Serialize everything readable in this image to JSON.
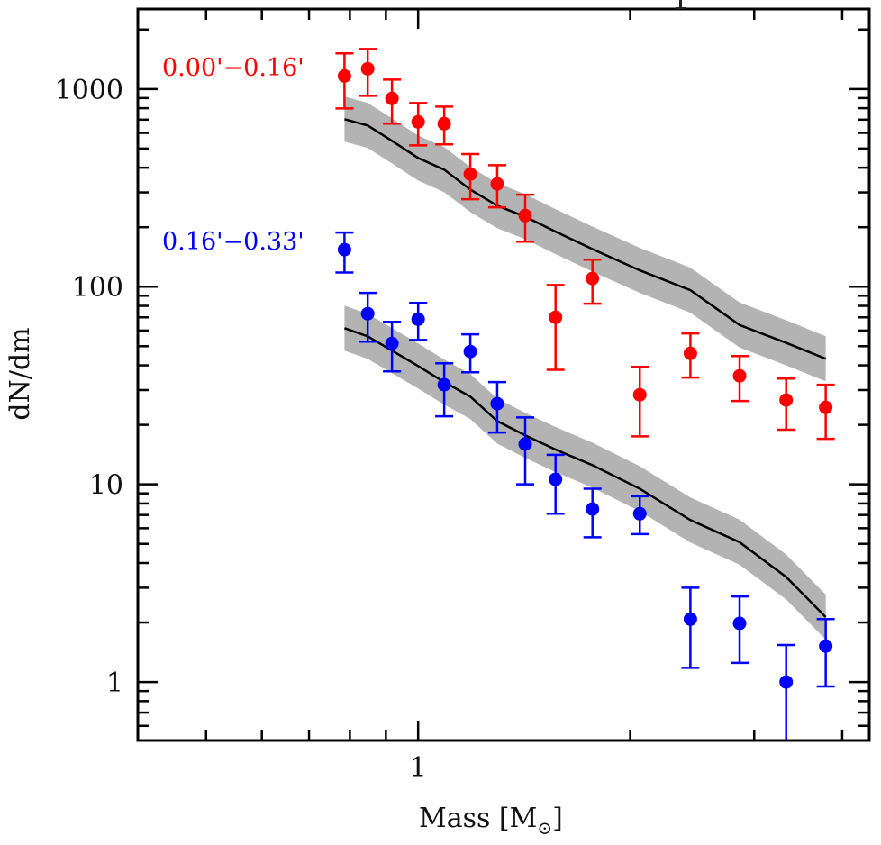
{
  "chart_data": {
    "type": "scatter",
    "title": "",
    "xlabel": "Mass [M⊙]",
    "xlabel_parts": {
      "text": "Mass [M",
      "subscript": "⊙",
      "close": "]"
    },
    "ylabel": "dN/dm",
    "xscale": "log",
    "yscale": "log",
    "xlim": [
      0.4,
      4.37
    ],
    "ylim": [
      0.506,
      2540
    ],
    "grid": false,
    "x_ticks": [
      {
        "value": 1,
        "label": "1"
      }
    ],
    "x_minor_ticks": [
      0.5,
      0.6,
      0.7,
      0.8,
      0.9,
      2,
      3,
      4
    ],
    "y_ticks": [
      {
        "value": 1,
        "label": "1"
      },
      {
        "value": 10,
        "label": "10"
      },
      {
        "value": 100,
        "label": "100"
      },
      {
        "value": 1000,
        "label": "1000"
      }
    ],
    "series": [
      {
        "name": "0.00'−0.16'",
        "label": "0.00'−0.16'",
        "color": "#ff0000",
        "x": [
          0.786,
          0.848,
          0.918,
          1.0,
          1.089,
          1.186,
          1.295,
          1.419,
          1.567,
          1.768,
          2.064,
          2.435,
          2.86,
          3.33,
          3.79
        ],
        "y": [
          1165,
          1266,
          896,
          682,
          668,
          371,
          331,
          229,
          70,
          110,
          28.4,
          46,
          35.4,
          26.7,
          24.5
        ],
        "y_err_low": [
          798,
          924,
          668,
          519,
          525,
          277,
          252,
          169,
          38,
          82,
          17.5,
          34.7,
          26.4,
          18.9,
          17.0
        ],
        "y_err_high": [
          1515,
          1595,
          1116,
          850,
          815,
          469,
          412,
          292,
          102,
          137,
          39.3,
          58,
          44.6,
          34.3,
          31.9
        ],
        "model": {
          "color": "#000000",
          "band_color": "#b3b3b3",
          "x": [
            0.786,
            0.848,
            0.918,
            1.0,
            1.089,
            1.186,
            1.295,
            1.419,
            1.567,
            1.768,
            2.064,
            2.435,
            2.86,
            3.33,
            3.79
          ],
          "y": [
            704,
            654,
            547,
            448,
            391,
            310,
            257,
            226,
            190,
            155,
            121,
            96,
            64,
            52,
            43.2
          ],
          "band_factor": 1.3
        }
      },
      {
        "name": "0.16'−0.33'",
        "label": "0.16'−0.33'",
        "color": "#0000ff",
        "x": [
          0.786,
          0.848,
          0.918,
          1.0,
          1.089,
          1.186,
          1.295,
          1.419,
          1.567,
          1.768,
          2.064,
          2.435,
          2.86,
          3.33,
          3.79
        ],
        "y": [
          154,
          73,
          51.6,
          68.5,
          31.9,
          47,
          25.6,
          16,
          10.6,
          7.5,
          7.1,
          2.08,
          1.98,
          1.0,
          1.52
        ],
        "y_err_low": [
          118,
          52.7,
          37.3,
          53.8,
          22.1,
          36.9,
          18.3,
          10,
          7.1,
          5.4,
          5.6,
          1.18,
          1.25,
          0.4,
          0.95
        ],
        "y_err_high": [
          188,
          93,
          66.4,
          82.8,
          41,
          57.4,
          32.9,
          21.8,
          14.1,
          9.5,
          8.7,
          3.0,
          2.71,
          1.54,
          2.08
        ],
        "model": {
          "color": "#000000",
          "band_color": "#b3b3b3",
          "x": [
            0.786,
            0.848,
            0.918,
            1.0,
            1.089,
            1.186,
            1.295,
            1.419,
            1.567,
            1.768,
            2.064,
            2.435,
            2.86,
            3.33,
            3.79
          ],
          "y": [
            61.7,
            56.1,
            47.5,
            39.7,
            32.9,
            27.8,
            20.9,
            17.7,
            15.0,
            12.5,
            9.5,
            6.6,
            5.1,
            3.4,
            2.13
          ],
          "band_factor": 1.3
        }
      }
    ],
    "annotations": [
      {
        "text": "0.00'−0.16'",
        "color": "#ff0000",
        "series": 0
      },
      {
        "text": "0.16'−0.33'",
        "color": "#0000ff",
        "series": 1
      }
    ]
  }
}
